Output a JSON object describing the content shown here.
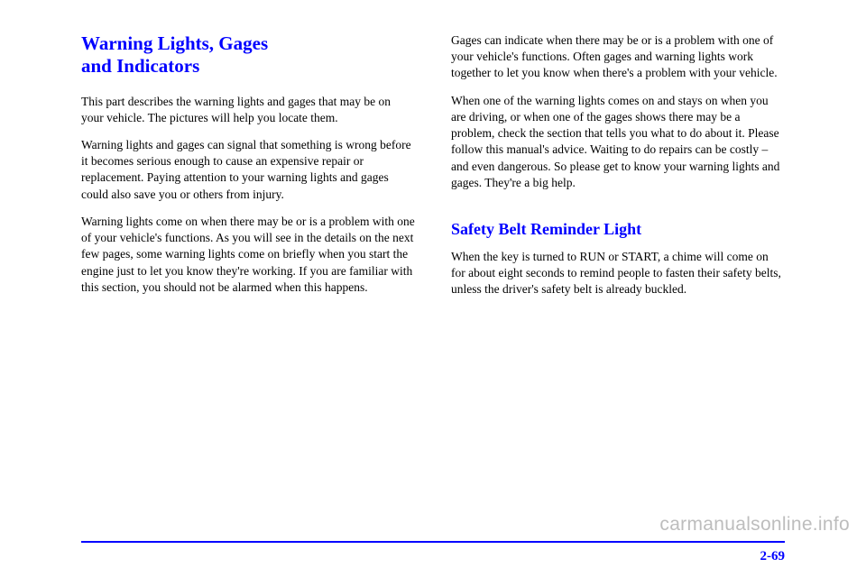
{
  "left": {
    "heading": "Warning Lights, Gages\nand Indicators",
    "p1": "This part describes the warning lights and gages that may be on your vehicle. The pictures will help you locate them.",
    "p2": "Warning lights and gages can signal that something is wrong before it becomes serious enough to cause an expensive repair or replacement. Paying attention to your warning lights and gages could also save you or others from injury.",
    "p3": "Warning lights come on when there may be or is a problem with one of your vehicle's functions. As you will see in the details on the next few pages, some warning lights come on briefly when you start the engine just to let you know they're working. If you are familiar with this section, you should not be alarmed when this happens."
  },
  "right": {
    "p1": "Gages can indicate when there may be or is a problem with one of your vehicle's functions. Often gages and warning lights work together to let you know when there's a problem with your vehicle.",
    "p2": "When one of the warning lights comes on and stays on when you are driving, or when one of the gages shows there may be a problem, check the section that tells you what to do about it. Please follow this manual's advice. Waiting to do repairs can be costly – and even dangerous. So please get to know your warning lights and gages. They're a big help.",
    "heading2": "Safety Belt Reminder Light",
    "p3": "When the key is turned to RUN or START, a chime will come on for about eight seconds to remind people to fasten their safety belts, unless the driver's safety belt is already buckled."
  },
  "pagenum": "2-69",
  "watermark": "carmanualsonline.info",
  "colors": {
    "heading": "#0000ff",
    "body": "#000000",
    "rule": "#0000ff",
    "watermark": "#bdbdbd",
    "background": "#ffffff"
  }
}
